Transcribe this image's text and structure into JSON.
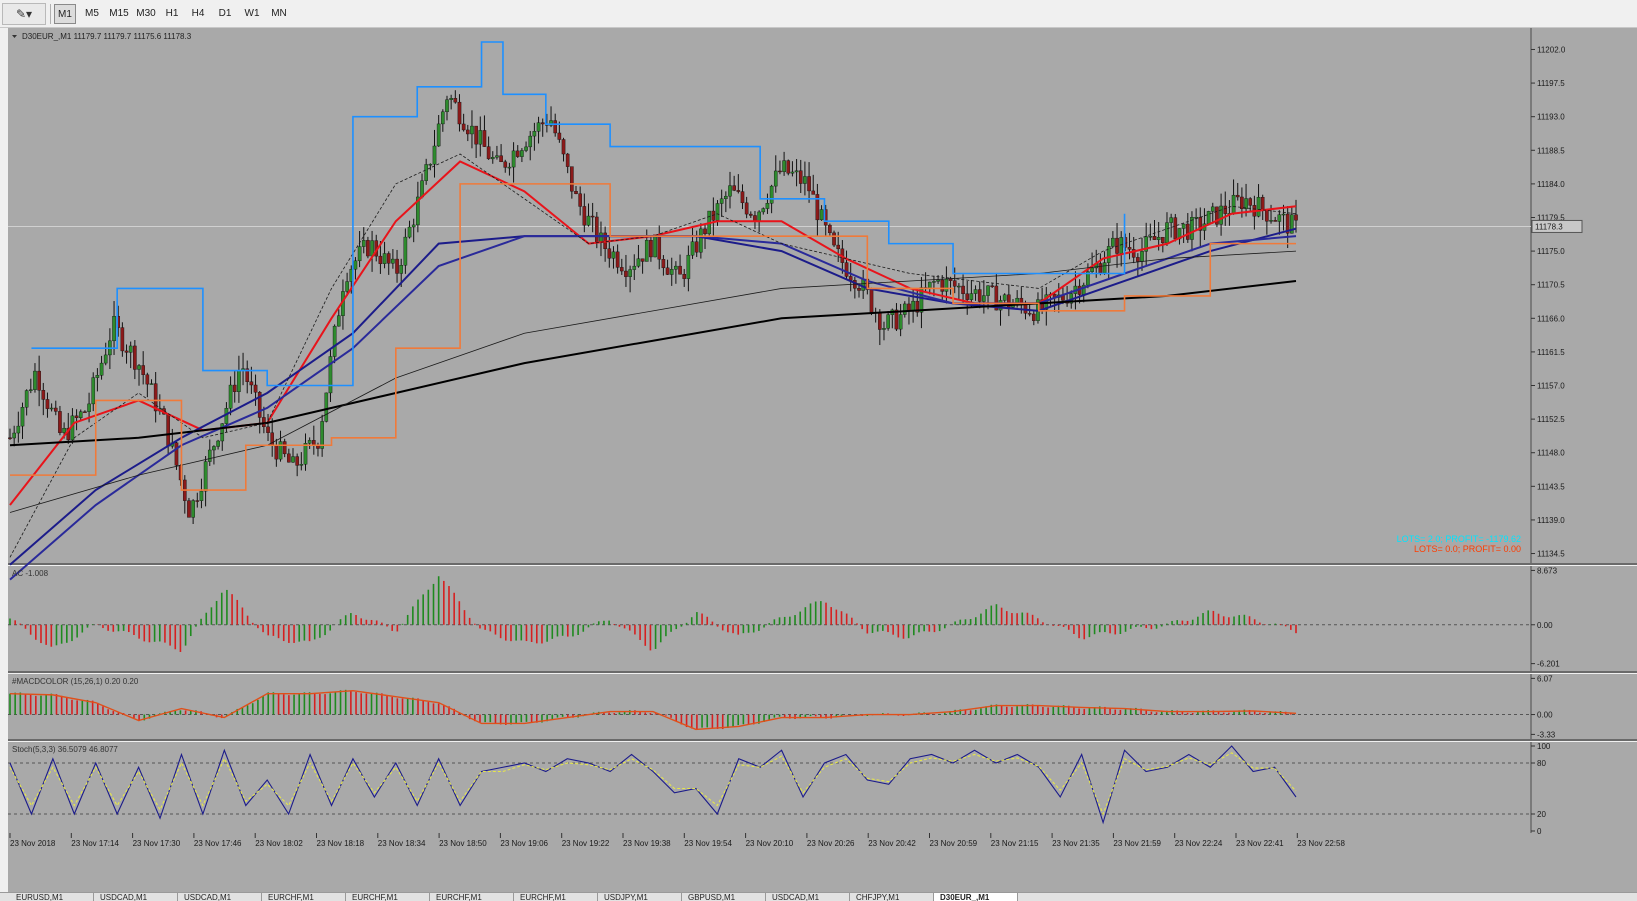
{
  "toolbar": {
    "tool_icon": "cursor-pen-icon",
    "tool_glyph": "✎▾",
    "timeframes": [
      {
        "label": "M1",
        "active": true
      },
      {
        "label": "M5",
        "active": false
      },
      {
        "label": "M15",
        "active": false
      },
      {
        "label": "M30",
        "active": false
      },
      {
        "label": "H1",
        "active": false
      },
      {
        "label": "H4",
        "active": false
      },
      {
        "label": "D1",
        "active": false
      },
      {
        "label": "W1",
        "active": false
      },
      {
        "label": "MN",
        "active": false
      }
    ]
  },
  "chart_data": [
    {
      "type": "candlestick",
      "title": "D30EUR_,M1  11179.7 11179.7 11175.6 11178.3",
      "symbol": "D30EUR_",
      "period": "M1",
      "ohlc": {
        "open": 11179.7,
        "high": 11179.7,
        "low": 11175.6,
        "close": 11178.3
      },
      "current_price_label": "11178.3",
      "y_ticks": [
        "11202.0",
        "11197.5",
        "11193.0",
        "11188.5",
        "11184.0",
        "11179.5",
        "11175.0",
        "11170.5",
        "11166.0",
        "11161.5",
        "11157.0",
        "11152.5",
        "11148.0",
        "11143.5",
        "11139.0",
        "11134.5"
      ],
      "ylim": [
        11133.5,
        11203.0
      ],
      "x_ticks": [
        "23 Nov 2018",
        "23 Nov 17:14",
        "23 Nov 17:30",
        "23 Nov 17:46",
        "23 Nov 18:02",
        "23 Nov 18:18",
        "23 Nov 18:34",
        "23 Nov 18:50",
        "23 Nov 19:06",
        "23 Nov 19:22",
        "23 Nov 19:38",
        "23 Nov 19:54",
        "23 Nov 20:10",
        "23 Nov 20:26",
        "23 Nov 20:42",
        "23 Nov 20:59",
        "23 Nov 21:15",
        "23 Nov 21:35",
        "23 Nov 21:59",
        "23 Nov 22:24",
        "23 Nov 22:41",
        "23 Nov 22:58"
      ],
      "close_path": {
        "x": [
          0,
          6,
          12,
          18,
          24,
          30,
          36,
          42,
          48,
          54,
          60,
          66,
          72,
          78,
          84,
          90,
          96,
          102,
          108,
          114,
          120,
          126,
          132,
          138,
          144,
          150,
          156,
          162,
          168,
          174,
          180,
          186,
          192,
          198,
          204,
          210,
          216,
          222,
          228,
          234,
          240,
          246,
          252,
          258,
          264,
          270,
          276,
          282,
          288,
          294,
          300
        ],
        "y": [
          11150,
          11159,
          11150,
          11154,
          11165,
          11160,
          11152,
          11140,
          11150,
          11160,
          11150,
          11146,
          11150,
          11172,
          11176,
          11172,
          11183,
          11196,
          11191,
          11186,
          11190,
          11193,
          11182,
          11176,
          11173,
          11176,
          11171,
          11178,
          11183,
          11180,
          11186,
          11184,
          11175,
          11171,
          11165,
          11167,
          11171,
          11170,
          11169,
          11168,
          11167,
          11169,
          11172,
          11176,
          11175,
          11178,
          11178,
          11180,
          11182,
          11180,
          11178
        ]
      },
      "series": [
        {
          "name": "",
          "style": "solid",
          "color": "#e8141b",
          "x": [
            0,
            15,
            30,
            45,
            60,
            75,
            90,
            105,
            120,
            135,
            150,
            165,
            180,
            195,
            210,
            225,
            240,
            255,
            270,
            285,
            300
          ],
          "y": [
            11141,
            11152,
            11155,
            11151,
            11152,
            11166,
            11179,
            11187,
            11183,
            11176,
            11177,
            11179,
            11179,
            11174,
            11170,
            11168,
            11168,
            11174,
            11176,
            11180,
            11181
          ]
        },
        {
          "name": "",
          "style": "solid",
          "color": "#1c1c8a",
          "x": [
            0,
            20,
            40,
            60,
            80,
            100,
            120,
            140,
            160,
            180,
            200,
            220,
            240,
            260,
            280,
            300
          ],
          "y": [
            11133,
            11143,
            11150,
            11156,
            11164,
            11176,
            11177,
            11177,
            11177,
            11175,
            11170,
            11168,
            11167,
            11171,
            11175,
            11178
          ]
        },
        {
          "name": "",
          "style": "solid",
          "color": "#2a2a9a",
          "x": [
            0,
            20,
            40,
            60,
            80,
            100,
            120,
            140,
            160,
            180,
            200,
            220,
            240,
            260,
            280,
            300
          ],
          "y": [
            11131,
            11141,
            11149,
            11154,
            11162,
            11173,
            11177,
            11177,
            11177,
            11176,
            11171,
            11168,
            11168,
            11172,
            11176,
            11177
          ]
        },
        {
          "name": "",
          "style": "solid",
          "color": "#000000",
          "x": [
            0,
            30,
            60,
            90,
            120,
            150,
            180,
            210,
            240,
            270,
            300
          ],
          "y": [
            11149,
            11150,
            11152,
            11156,
            11160,
            11163,
            11166,
            11167,
            11168,
            11169,
            11171
          ]
        },
        {
          "name": "",
          "style": "thin",
          "color": "#1a1a1a",
          "x": [
            0,
            30,
            60,
            90,
            120,
            150,
            180,
            210,
            240,
            270,
            300
          ],
          "y": [
            11140,
            11145,
            11149,
            11158,
            11164,
            11167,
            11170,
            11171,
            11172,
            11174,
            11175
          ]
        },
        {
          "name": "",
          "style": "dashed",
          "color": "#1a1a1a",
          "x": [
            0,
            15,
            30,
            45,
            60,
            75,
            90,
            105,
            120,
            135,
            150,
            165,
            180,
            195,
            210,
            225,
            240,
            255,
            270,
            285,
            300
          ],
          "y": [
            11134,
            11150,
            11156,
            11150,
            11152,
            11170,
            11184,
            11188,
            11182,
            11176,
            11177,
            11180,
            11176,
            11174,
            11172,
            11171,
            11170,
            11175,
            11178,
            11181,
            11180
          ]
        },
        {
          "name": "",
          "style": "step",
          "color": "#f07a3a",
          "x": [
            0,
            20,
            40,
            55,
            75,
            90,
            105,
            120,
            140,
            160,
            180,
            200,
            220,
            240,
            260,
            280,
            300
          ],
          "y": [
            11145,
            11155,
            11143,
            11149,
            11150,
            11162,
            11184,
            11184,
            11177,
            11177,
            11177,
            11170,
            11168,
            11167,
            11169,
            11176,
            11176
          ]
        },
        {
          "name": "",
          "style": "step",
          "color": "#1e90ff",
          "x": [
            5,
            25,
            45,
            60,
            80,
            95,
            110,
            115,
            125,
            140,
            160,
            175,
            190,
            205,
            220,
            240,
            260
          ],
          "y": [
            11162,
            11170,
            11159,
            11157,
            11193,
            11197,
            11203,
            11196,
            11192,
            11189,
            11189,
            11182,
            11179,
            11176,
            11172,
            11172,
            11180
          ]
        }
      ],
      "annotations": [
        {
          "text": "LOTS= 2.0; PROFIT= -1179.62",
          "color": "#00e5ff"
        },
        {
          "text": "LOTS= 0.0; PROFIT= 0.00",
          "color": "#ff3c00"
        }
      ]
    },
    {
      "type": "bar",
      "title": "AC -1.008",
      "y_ticks": [
        "8.673",
        "0.00",
        "-6.201"
      ],
      "ylim": [
        -6.9,
        8.9
      ],
      "level": 0,
      "x": [
        0,
        10,
        20,
        30,
        40,
        50,
        60,
        70,
        80,
        90,
        100,
        110,
        120,
        130,
        140,
        150,
        160,
        170,
        180,
        190,
        200,
        210,
        220,
        230,
        240,
        250,
        260,
        270,
        280,
        290,
        300
      ],
      "values": [
        1,
        -4,
        0,
        -2,
        -4,
        6,
        -2,
        -3,
        2,
        -1,
        8,
        -1,
        -3,
        -2,
        1,
        -4,
        2,
        -2,
        1,
        4,
        -1,
        -2,
        0,
        3,
        1,
        -2,
        -1,
        0,
        2,
        1,
        -1
      ]
    },
    {
      "type": "bar",
      "title": "#MACDCOLOR (15,26,1) 0.20 0.20",
      "y_ticks": [
        "6.07",
        "0.00",
        "-3.33"
      ],
      "ylim": [
        -3.6,
        6.3
      ],
      "level": 0,
      "x": [
        0,
        10,
        20,
        30,
        40,
        50,
        60,
        70,
        80,
        90,
        100,
        110,
        120,
        130,
        140,
        150,
        160,
        170,
        180,
        190,
        200,
        210,
        220,
        230,
        240,
        250,
        260,
        270,
        280,
        290,
        300
      ],
      "values": [
        3.5,
        3.3,
        2,
        -1,
        1,
        -0.5,
        3.5,
        3.5,
        4,
        3,
        2,
        -1.5,
        -1.5,
        -0.5,
        0.5,
        0.5,
        -2.5,
        -2,
        -0.5,
        -0.5,
        0,
        0,
        0.5,
        1.5,
        1.5,
        1.2,
        1,
        0.5,
        0.5,
        0.6,
        0.2
      ]
    },
    {
      "type": "line",
      "title": "Stoch(5,3,3) 36.5079 46.8077",
      "y_ticks": [
        "100",
        "80",
        "20",
        "0"
      ],
      "ylim": [
        0,
        100
      ],
      "levels": [
        80,
        20
      ],
      "x": [
        0,
        5,
        10,
        15,
        20,
        25,
        30,
        35,
        40,
        45,
        50,
        55,
        60,
        65,
        70,
        75,
        80,
        85,
        90,
        95,
        100,
        105,
        110,
        115,
        120,
        125,
        130,
        135,
        140,
        145,
        150,
        155,
        160,
        165,
        170,
        175,
        180,
        185,
        190,
        195,
        200,
        205,
        210,
        215,
        220,
        225,
        230,
        235,
        240,
        245,
        250,
        255,
        260,
        265,
        270,
        275,
        280,
        285,
        290,
        295,
        300
      ],
      "series": [
        {
          "name": "",
          "color": "#1c1c8a",
          "style": "solid",
          "values": [
            80,
            20,
            85,
            20,
            80,
            20,
            75,
            15,
            90,
            20,
            95,
            30,
            60,
            20,
            90,
            30,
            85,
            40,
            80,
            30,
            85,
            30,
            70,
            75,
            80,
            70,
            85,
            80,
            70,
            90,
            70,
            45,
            50,
            20,
            85,
            75,
            95,
            40,
            80,
            90,
            60,
            55,
            85,
            90,
            80,
            95,
            80,
            90,
            75,
            40,
            90,
            10,
            95,
            70,
            75,
            90,
            75,
            100,
            70,
            75,
            40
          ]
        },
        {
          "name": "",
          "color": "#e6e64a",
          "style": "dashed",
          "values": [
            75,
            30,
            75,
            30,
            75,
            30,
            70,
            25,
            80,
            30,
            85,
            35,
            55,
            30,
            80,
            35,
            80,
            45,
            75,
            35,
            80,
            35,
            70,
            70,
            78,
            72,
            80,
            78,
            72,
            85,
            72,
            50,
            50,
            30,
            78,
            75,
            88,
            45,
            75,
            85,
            62,
            58,
            80,
            86,
            82,
            90,
            82,
            86,
            76,
            48,
            80,
            20,
            85,
            72,
            76,
            86,
            78,
            92,
            74,
            74,
            47
          ]
        }
      ]
    }
  ],
  "tabs": [
    "EURUSD,M1",
    "USDCAD,M1",
    "USDCAD,M1",
    "EURCHF,M1",
    "EURCHF,M1",
    "EURCHF,M1",
    "EURCHF,M1",
    "USDJPY,M1",
    "GBPUSD,M1",
    "USDCAD,M1",
    "CHFJPY,M1",
    "D30EUR_,M1"
  ],
  "active_tab_index": 11
}
